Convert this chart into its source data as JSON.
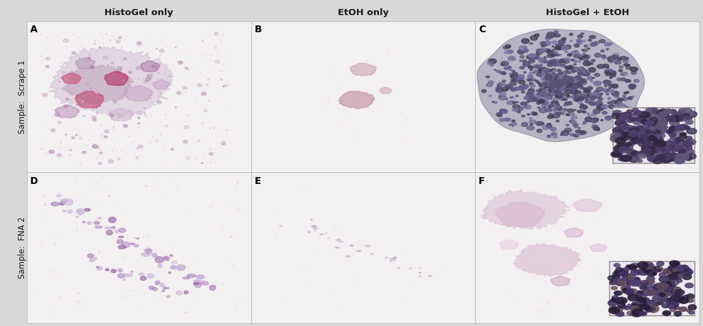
{
  "col_titles": [
    "HistoGel only",
    "EtOH only",
    "HistoGel + EtOH"
  ],
  "row_labels": [
    "Sample:  Scrape 1",
    "Sample:  FNA 2"
  ],
  "panel_labels": [
    [
      "A",
      "B",
      "C"
    ],
    [
      "D",
      "E",
      "F"
    ]
  ],
  "panel_bg": "#f2f0f0",
  "border_color": "#bbbbbb",
  "fig_bg": "#d8d8d8",
  "title_fontsize": 9.5,
  "panel_label_fontsize": 10,
  "row_label_fontsize": 8.5,
  "figure_width": 10.24,
  "figure_height": 4.75
}
